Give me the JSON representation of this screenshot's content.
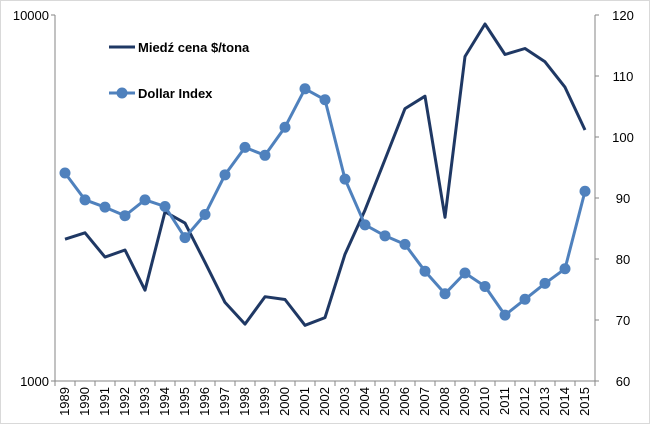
{
  "chart_data": {
    "type": "line",
    "x": [
      "1989",
      "1990",
      "1991",
      "1992",
      "1993",
      "1994",
      "1995",
      "1996",
      "1997",
      "1998",
      "1999",
      "2000",
      "2001",
      "2002",
      "2003",
      "2004",
      "2005",
      "2006",
      "2007",
      "2008",
      "2009",
      "2010",
      "2011",
      "2012",
      "2013",
      "2014",
      "2015"
    ],
    "series": [
      {
        "name": "Miedź cena $/tona",
        "axis": "left",
        "color": "#1f3864",
        "values": [
          2440,
          2540,
          2180,
          2280,
          1770,
          2900,
          2700,
          2110,
          1640,
          1430,
          1700,
          1670,
          1420,
          1490,
          2220,
          2930,
          4030,
          5550,
          6000,
          2800,
          7700,
          9450,
          7800,
          8100,
          7450,
          6350,
          4850
        ]
      },
      {
        "name": "Dollar Index",
        "axis": "right",
        "color": "#4f81bd",
        "values": [
          94.1,
          89.7,
          88.5,
          87.1,
          89.7,
          88.6,
          83.5,
          87.3,
          93.8,
          98.3,
          97.0,
          101.6,
          107.9,
          106.1,
          93.1,
          85.6,
          83.8,
          82.4,
          78.0,
          74.3,
          77.7,
          75.5,
          70.8,
          73.4,
          76.0,
          78.4,
          91.1
        ]
      }
    ],
    "y_left": {
      "scale": "log",
      "range": [
        1000,
        10000
      ],
      "tick_labels": [
        "1000",
        "10000"
      ]
    },
    "y_right": {
      "scale": "linear",
      "range": [
        60,
        120
      ],
      "ticks": [
        60,
        70,
        80,
        90,
        100,
        110,
        120
      ]
    },
    "legend": "top-left, inside plot",
    "grid": false,
    "title": "",
    "xlabel": "",
    "ylabel": ""
  }
}
